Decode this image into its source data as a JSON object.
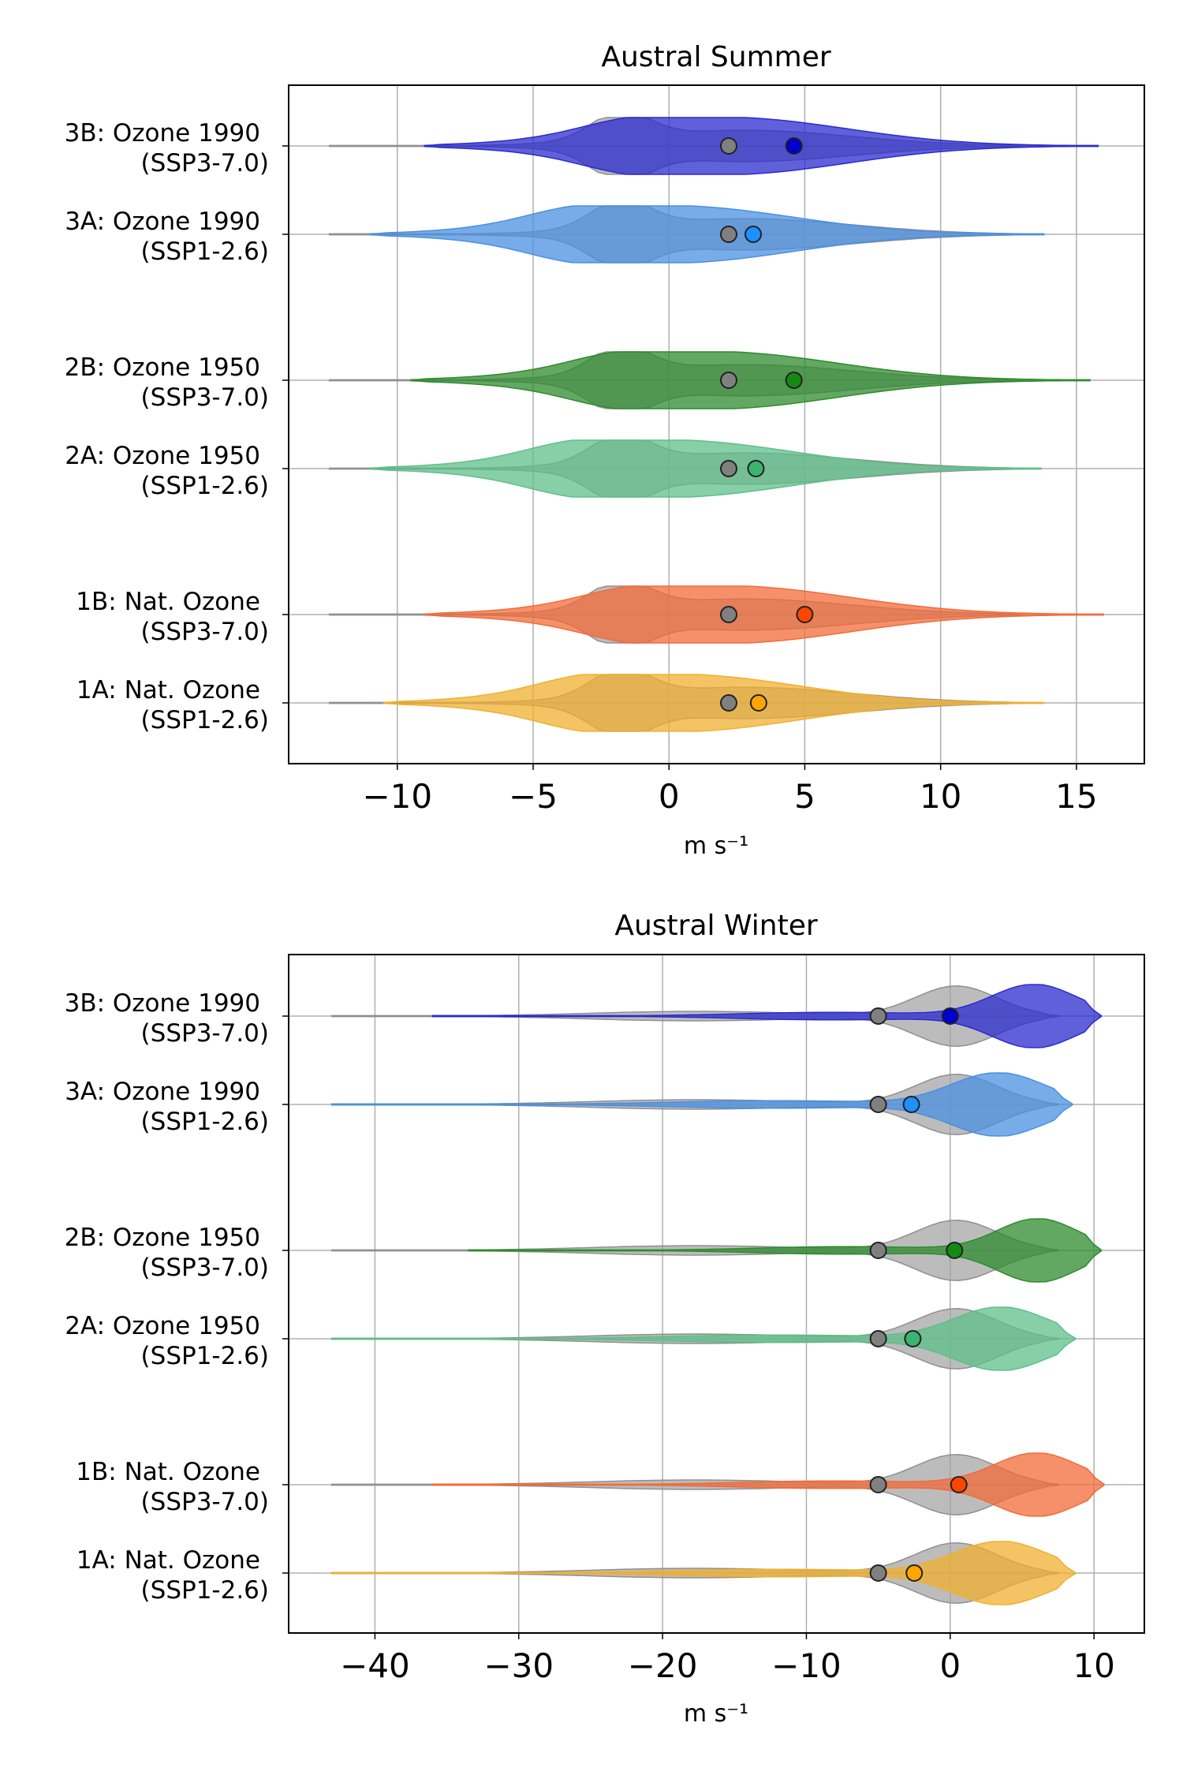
{
  "chart_data": [
    {
      "type": "violin",
      "title": "Austral Summer",
      "xlabel": "m s⁻¹",
      "xlim": [
        -14,
        17.5
      ],
      "xticks": [
        -10,
        -5,
        0,
        5,
        10,
        15
      ],
      "xtick_labels": [
        "−10",
        "−5",
        "0",
        "5",
        "10",
        "15"
      ],
      "grid": true,
      "categories": [
        {
          "label_line1": "3B: Ozone 1990",
          "label_line2": "(SSP3-7.0)",
          "color": "#2b2bcf",
          "marker_color": "#0000cc",
          "median": 4.6,
          "reference_median": 2.2,
          "min": -9.0,
          "max": 15.8
        },
        {
          "label_line1": "3A: Ozone 1990",
          "label_line2": "(SSP1-2.6)",
          "color": "#4a90e2",
          "marker_color": "#1e90ff",
          "median": 3.1,
          "reference_median": 2.2,
          "min": -11.0,
          "max": 13.8
        },
        {
          "label_line1": "2B: Ozone 1950",
          "label_line2": "(SSP3-7.0)",
          "color": "#2e8b2e",
          "marker_color": "#138a13",
          "median": 4.6,
          "reference_median": 2.2,
          "min": -9.5,
          "max": 15.5
        },
        {
          "label_line1": "2A: Ozone 1950",
          "label_line2": "(SSP1-2.6)",
          "color": "#5fbf8a",
          "marker_color": "#3cb371",
          "median": 3.2,
          "reference_median": 2.2,
          "min": -11.0,
          "max": 13.7
        },
        {
          "label_line1": "1B: Nat. Ozone",
          "label_line2": "(SSP3-7.0)",
          "color": "#f26b3a",
          "marker_color": "#ff4500",
          "median": 5.0,
          "reference_median": 2.2,
          "min": -9.0,
          "max": 16.0
        },
        {
          "label_line1": "1A: Nat. Ozone",
          "label_line2": "(SSP1-2.6)",
          "color": "#f0b030",
          "marker_color": "#ffa500",
          "median": 3.3,
          "reference_median": 2.2,
          "min": -10.5,
          "max": 13.8
        }
      ],
      "reference": {
        "color": "#a0a0a0",
        "marker_color": "#808080",
        "min": -12.5,
        "max": 13.0
      }
    },
    {
      "type": "violin",
      "title": "Austral Winter",
      "xlabel": "m s⁻¹",
      "xlim": [
        -46,
        13.5
      ],
      "xticks": [
        -40,
        -30,
        -20,
        -10,
        0,
        10
      ],
      "xtick_labels": [
        "−40",
        "−30",
        "−20",
        "−10",
        "0",
        "10"
      ],
      "grid": true,
      "categories": [
        {
          "label_line1": "3B: Ozone 1990",
          "label_line2": "(SSP3-7.0)",
          "color": "#2b2bcf",
          "marker_color": "#0000cc",
          "median": 0.0,
          "reference_median": -5.0,
          "min": -36.0,
          "max": 10.5
        },
        {
          "label_line1": "3A: Ozone 1990",
          "label_line2": "(SSP1-2.6)",
          "color": "#4a90e2",
          "marker_color": "#1e90ff",
          "median": -2.7,
          "reference_median": -5.0,
          "min": -43.0,
          "max": 8.5
        },
        {
          "label_line1": "2B: Ozone 1950",
          "label_line2": "(SSP3-7.0)",
          "color": "#2e8b2e",
          "marker_color": "#138a13",
          "median": 0.3,
          "reference_median": -5.0,
          "min": -33.5,
          "max": 10.5
        },
        {
          "label_line1": "2A: Ozone 1950",
          "label_line2": "(SSP1-2.6)",
          "color": "#5fbf8a",
          "marker_color": "#3cb371",
          "median": -2.6,
          "reference_median": -5.0,
          "min": -43.0,
          "max": 8.7
        },
        {
          "label_line1": "1B: Nat. Ozone",
          "label_line2": "(SSP3-7.0)",
          "color": "#f26b3a",
          "marker_color": "#ff4500",
          "median": 0.6,
          "reference_median": -5.0,
          "min": -36.0,
          "max": 10.7
        },
        {
          "label_line1": "1A: Nat. Ozone",
          "label_line2": "(SSP1-2.6)",
          "color": "#f0b030",
          "marker_color": "#ffa500",
          "median": -2.5,
          "reference_median": -5.0,
          "min": -43.0,
          "max": 8.7
        }
      ],
      "reference": {
        "color": "#a0a0a0",
        "marker_color": "#808080",
        "min": -43.0,
        "max": 7.5
      }
    }
  ]
}
